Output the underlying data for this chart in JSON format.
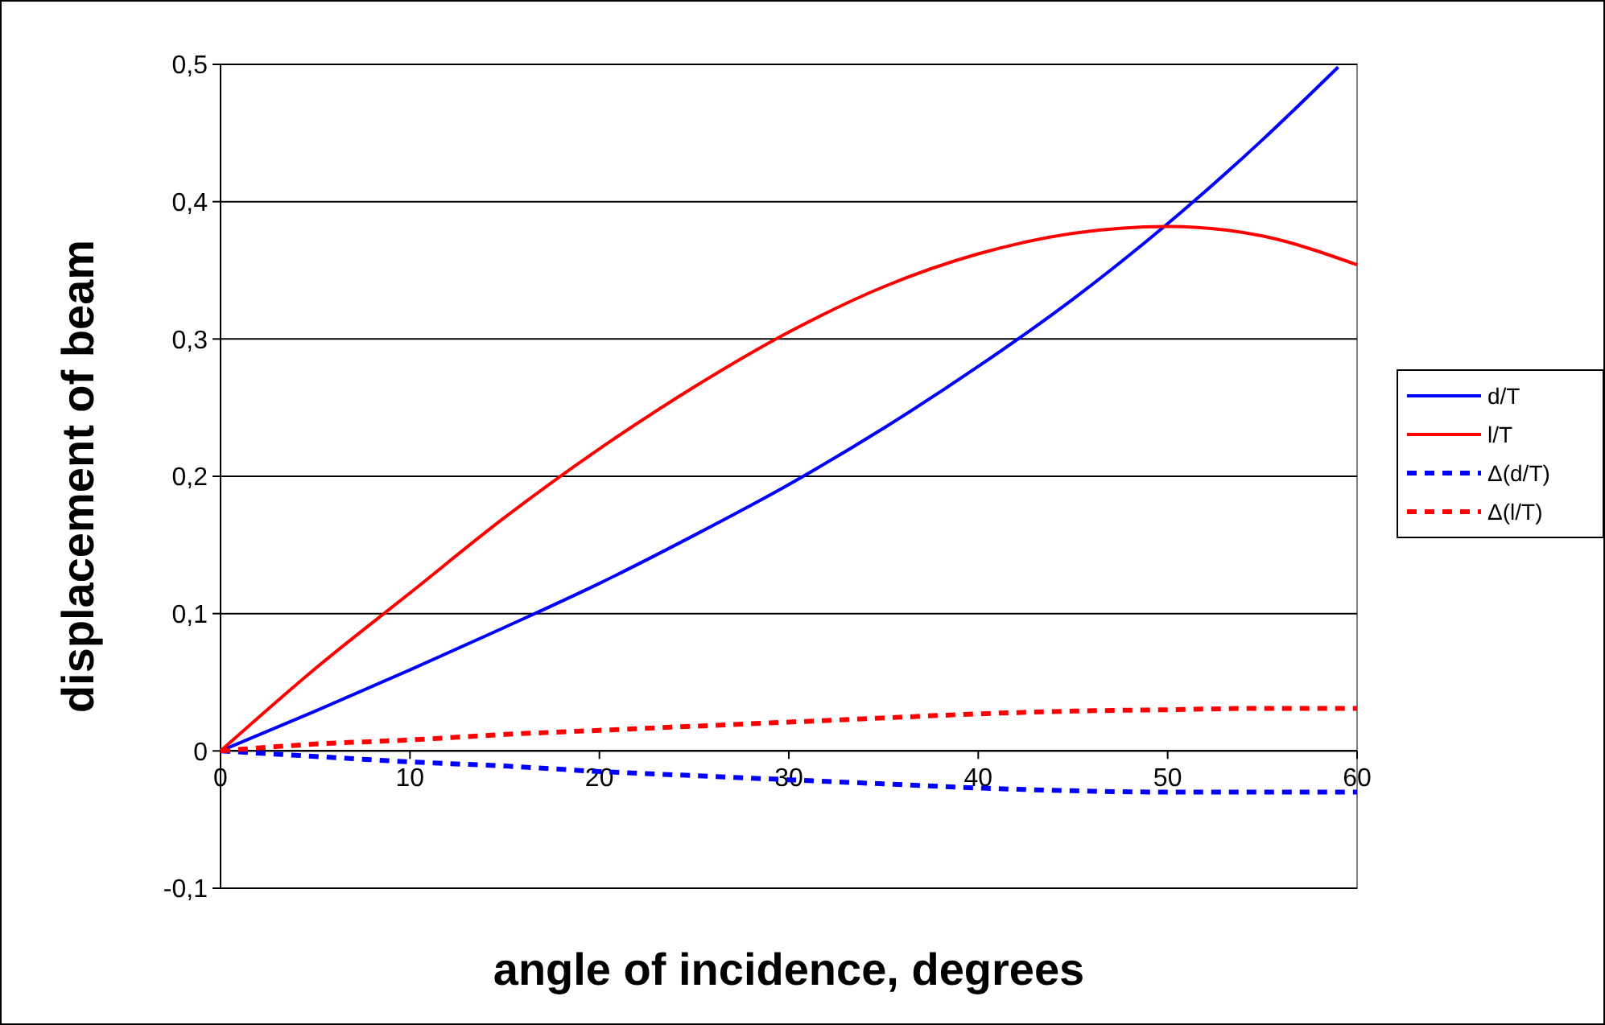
{
  "chart_data": {
    "type": "line",
    "xlabel": "angle of incidence, degrees",
    "ylabel": "displacement of beam",
    "x": [
      0,
      5,
      10,
      15,
      20,
      25,
      30,
      35,
      40,
      45,
      50,
      55,
      59
    ],
    "xlim": [
      0,
      60
    ],
    "xticks": [
      0,
      10,
      20,
      30,
      40,
      50,
      60
    ],
    "ylim": [
      -0.1,
      0.5
    ],
    "yticks": [
      {
        "value": -0.1,
        "label": "-0,1"
      },
      0,
      {
        "value": 0.1,
        "label": "0,1"
      },
      {
        "value": 0.2,
        "label": "0,2"
      },
      {
        "value": 0.3,
        "label": "0,3"
      },
      {
        "value": 0.4,
        "label": "0,4"
      },
      {
        "value": 0.5,
        "label": "0,5"
      }
    ],
    "grid": "y",
    "legend": "right",
    "series": [
      {
        "name": "d/T",
        "color": "#0000ff",
        "line_style": "solid",
        "values": [
          0,
          0.029,
          0.059,
          0.09,
          0.122,
          0.157,
          0.194,
          0.235,
          0.28,
          0.329,
          0.384,
          0.445,
          0.498
        ]
      },
      {
        "name": "l/T",
        "color": "#ff0000",
        "line_style": "solid",
        "x": [
          0,
          5,
          10,
          15,
          20,
          25,
          30,
          35,
          40,
          45,
          50,
          55,
          60
        ],
        "values": [
          0,
          0.06,
          0.115,
          0.17,
          0.22,
          0.265,
          0.305,
          0.338,
          0.362,
          0.377,
          0.382,
          0.375,
          0.354
        ]
      },
      {
        "name": "Δ(d/T)",
        "color": "#0000ff",
        "line_style": "dashed",
        "x": [
          0,
          5,
          10,
          15,
          20,
          25,
          30,
          35,
          40,
          45,
          50,
          55,
          60
        ],
        "values": [
          0,
          -0.004,
          -0.008,
          -0.011,
          -0.015,
          -0.018,
          -0.021,
          -0.024,
          -0.027,
          -0.029,
          -0.03,
          -0.03,
          -0.03
        ]
      },
      {
        "name": "Δ(l/T)",
        "color": "#ff0000",
        "line_style": "dashed",
        "x": [
          0,
          5,
          10,
          15,
          20,
          25,
          30,
          35,
          40,
          45,
          50,
          55,
          60
        ],
        "values": [
          0,
          0.005,
          0.008,
          0.012,
          0.015,
          0.018,
          0.021,
          0.024,
          0.027,
          0.029,
          0.03,
          0.031,
          0.031
        ]
      }
    ]
  }
}
